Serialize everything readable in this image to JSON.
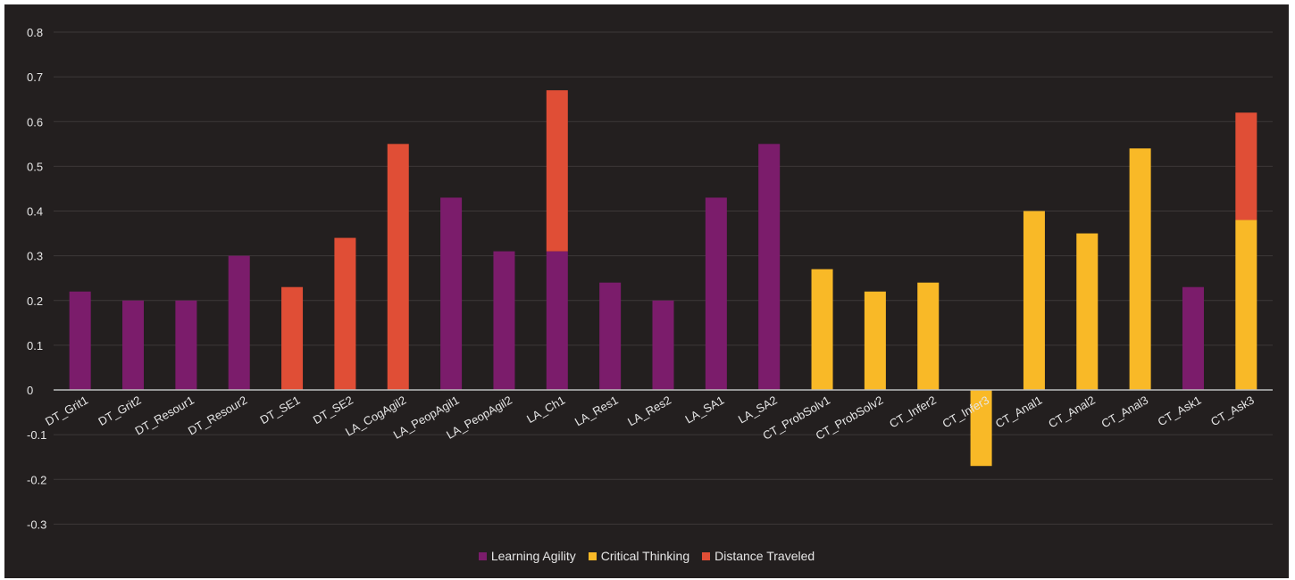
{
  "chart_data": {
    "type": "bar",
    "stacked": true,
    "title": "",
    "xlabel": "",
    "ylabel": "",
    "ylim": [
      -0.3,
      0.8
    ],
    "yticks": [
      0.8,
      0.7,
      0.6,
      0.5,
      0.4,
      0.3,
      0.2,
      0.1,
      0,
      -0.1,
      -0.2,
      -0.3
    ],
    "ytick_labels": [
      "0.8",
      "0.7",
      "0.6",
      "0.5",
      "0.4",
      "0.3",
      "0.2",
      "0.1",
      "0",
      "-0.1",
      "-0.2",
      "-0.3"
    ],
    "grid": true,
    "legend_position": "bottom",
    "categories": [
      "DT_Grit1",
      "DT_Grit2",
      "DT_Resour1",
      "DT_Resour2",
      "DT_SE1",
      "DT_SE2",
      "LA_CogAgil2",
      "LA_PeopAgil1",
      "LA_PeopAgil2",
      "LA_Ch1",
      "LA_Res1",
      "LA_Res2",
      "LA_SA1",
      "LA_SA2",
      "CT_ProbSolv1",
      "CT_ProbSolv2",
      "CT_Infer2",
      "CT_Infer3",
      "CT_Anal1",
      "CT_Anal2",
      "CT_Anal3",
      "CT_Ask1",
      "CT_Ask3"
    ],
    "series": [
      {
        "name": "Learning Agility",
        "color": "#7b1c6b",
        "values": [
          0.22,
          0.2,
          0.2,
          0.3,
          0,
          0,
          0,
          0.43,
          0.31,
          0.31,
          0.24,
          0.2,
          0.43,
          0.55,
          0,
          0,
          0,
          0,
          0,
          0,
          0,
          0.23,
          0
        ]
      },
      {
        "name": "Critical Thinking",
        "color": "#f9b927",
        "values": [
          0,
          0,
          0,
          0,
          0,
          0,
          0,
          0,
          0,
          0,
          0,
          0,
          0,
          0,
          0.27,
          0.22,
          0.24,
          -0.17,
          0.4,
          0.35,
          0.54,
          0,
          0.38
        ]
      },
      {
        "name": "Distance Traveled",
        "color": "#e04e36",
        "values": [
          0,
          0,
          0,
          0,
          0.23,
          0.34,
          0.55,
          0,
          0,
          0.36,
          0,
          0,
          0,
          0,
          0,
          0,
          0,
          0,
          0,
          0,
          0,
          0,
          0.24
        ]
      }
    ]
  }
}
